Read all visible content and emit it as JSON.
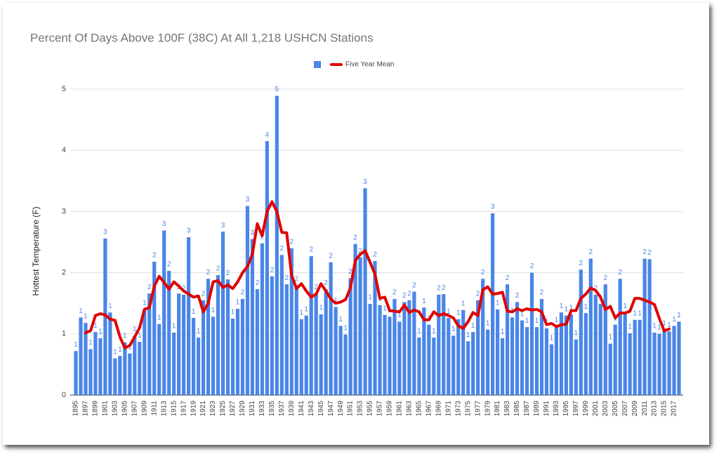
{
  "chart_data": {
    "type": "bar",
    "title": "Percent Of Days Above 100F (38C)  At All 1,218 USHCN Stations",
    "y_label": "Hottest Temperature (F)",
    "categories": [
      "1895",
      null,
      "1897",
      null,
      "1899",
      null,
      "1901",
      null,
      "1903",
      null,
      "1905",
      null,
      "1907",
      null,
      "1909",
      null,
      "1911",
      null,
      "1913",
      null,
      "1915",
      null,
      "1917",
      null,
      "1919",
      null,
      "1921",
      null,
      "1923",
      null,
      "1925",
      null,
      "1927",
      null,
      "1929",
      null,
      "1931",
      null,
      "1933",
      null,
      "1935",
      null,
      "1937",
      null,
      "1939",
      null,
      "1941",
      null,
      "1943",
      null,
      "1945",
      null,
      "1947",
      null,
      "1949",
      null,
      "1951",
      null,
      "1953",
      null,
      "1955",
      null,
      "1957",
      null,
      "1959",
      null,
      "1961",
      null,
      "1963",
      null,
      "1965",
      null,
      "1967",
      null,
      "1969",
      null,
      "1971",
      null,
      "1973",
      null,
      "1975",
      null,
      "1977",
      null,
      "1979",
      null,
      "1981",
      null,
      "1983",
      null,
      "1985",
      null,
      "1987",
      null,
      "1989",
      null,
      "1991",
      null,
      "1993",
      null,
      "1995",
      null,
      "1997",
      null,
      "1999",
      null,
      "2001",
      null,
      "2003",
      null,
      "2005",
      null,
      "2007",
      null,
      "2009",
      null,
      "2011",
      null,
      "2013",
      null,
      "2015",
      null,
      "2017",
      null
    ],
    "series": [
      {
        "type": "bar",
        "color": "#4a86e8",
        "values": [
          0.72,
          1.27,
          1.18,
          0.75,
          1.03,
          0.93,
          2.56,
          1.35,
          0.6,
          0.64,
          0.86,
          0.68,
          0.97,
          0.87,
          1.4,
          1.66,
          2.18,
          1.16,
          2.69,
          2.03,
          1.02,
          1.66,
          1.64,
          2.58,
          1.26,
          0.94,
          1.55,
          1.9,
          1.28,
          1.96,
          2.67,
          1.89,
          1.25,
          1.41,
          1.57,
          3.09,
          2.55,
          1.73,
          2.48,
          4.15,
          1.94,
          4.89,
          2.29,
          1.81,
          2.4,
          1.79,
          1.24,
          1.3,
          2.27,
          1.66,
          1.32,
          1.73,
          2.17,
          1.44,
          1.13,
          0.99,
          1.91,
          2.47,
          2.25,
          3.38,
          1.49,
          2.19,
          1.47,
          1.31,
          1.28,
          1.57,
          1.2,
          1.52,
          1.55,
          1.69,
          0.94,
          1.43,
          1.15,
          0.94,
          1.64,
          1.65,
          1.26,
          0.97,
          1.24,
          1.39,
          0.88,
          1.03,
          1.55,
          1.9,
          1.07,
          2.97,
          1.4,
          0.93,
          1.81,
          1.27,
          1.52,
          1.22,
          1.11,
          2.0,
          1.11,
          1.57,
          1.09,
          0.83,
          1.12,
          1.35,
          1.3,
          1.32,
          0.91,
          2.05,
          1.34,
          2.23,
          1.64,
          1.49,
          1.81,
          0.84,
          1.15,
          1.9,
          1.35,
          1.01,
          1.23,
          1.23,
          2.23,
          2.22,
          1.02,
          1.0,
          1.07,
          1.04,
          1.13,
          1.2
        ],
        "value_labels": [
          "1",
          "1",
          "1",
          "1",
          "1",
          "1",
          "3",
          "1",
          "1",
          "1",
          "1",
          "1",
          "1",
          "1",
          "1",
          "2",
          "2",
          "1",
          "3",
          "2",
          "1",
          "2",
          "2",
          "3",
          "1",
          "1",
          "2",
          "2",
          "1",
          "2",
          "3",
          "2",
          "1",
          "1",
          "2",
          "3",
          "3",
          "2",
          "2",
          "4",
          "2",
          "5",
          "2",
          "2",
          "2",
          "2",
          "1",
          "1",
          "2",
          "2",
          "1",
          "2",
          "2",
          "1",
          "1",
          "1",
          "2",
          "2",
          "2",
          "3",
          "1",
          "2",
          "1",
          "1",
          "1",
          "2",
          "1",
          "2",
          "2",
          "2",
          "1",
          "1",
          "1",
          "1",
          "2",
          "2",
          "1",
          "1",
          "1",
          "1",
          "1",
          "1",
          "2",
          "2",
          "1",
          "3",
          "1",
          "1",
          "2",
          "1",
          "2",
          "1",
          "1",
          "2",
          "1",
          "2",
          "1",
          "1",
          "1",
          "1",
          "1",
          "1",
          "1",
          "2",
          "1",
          "2",
          "2",
          "1",
          "2",
          "1",
          "1",
          "2",
          "1",
          "1",
          "1",
          "1",
          "2",
          "2",
          "1",
          "1",
          "1",
          "1",
          "1",
          "1"
        ]
      },
      {
        "type": "line",
        "name": "Five Year Mean",
        "color": "#e00000",
        "values": [
          null,
          null,
          1.02,
          1.05,
          1.3,
          1.33,
          1.31,
          1.24,
          1.22,
          0.95,
          0.77,
          0.81,
          0.95,
          1.1,
          1.4,
          1.43,
          1.78,
          1.94,
          1.84,
          1.73,
          1.85,
          1.78,
          1.7,
          1.65,
          1.6,
          1.62,
          1.36,
          1.5,
          1.85,
          1.87,
          1.76,
          1.8,
          1.74,
          1.85,
          2.0,
          2.1,
          2.3,
          2.8,
          2.6,
          3.0,
          3.16,
          3.0,
          2.66,
          2.65,
          1.96,
          1.74,
          1.82,
          1.7,
          1.6,
          1.65,
          1.82,
          1.7,
          1.57,
          1.5,
          1.52,
          1.56,
          1.75,
          2.2,
          2.3,
          2.36,
          2.17,
          1.98,
          1.58,
          1.6,
          1.38,
          1.37,
          1.36,
          1.47,
          1.35,
          1.39,
          1.36,
          1.23,
          1.23,
          1.36,
          1.3,
          1.33,
          1.3,
          1.26,
          1.13,
          1.09,
          1.2,
          1.35,
          1.3,
          1.72,
          1.77,
          1.65,
          1.66,
          1.68,
          1.37,
          1.36,
          1.41,
          1.38,
          1.41,
          1.39,
          1.4,
          1.36,
          1.15,
          1.17,
          1.12,
          1.15,
          1.16,
          1.38,
          1.38,
          1.58,
          1.65,
          1.75,
          1.71,
          1.6,
          1.4,
          1.45,
          1.26,
          1.34,
          1.34,
          1.37,
          1.58,
          1.58,
          1.55,
          1.52,
          1.48,
          1.25,
          1.05,
          1.08,
          null,
          null
        ]
      }
    ],
    "ylim": [
      0,
      5
    ],
    "yticks": [
      0,
      1,
      2,
      3,
      4,
      5
    ],
    "grid": true,
    "legend": "top"
  }
}
